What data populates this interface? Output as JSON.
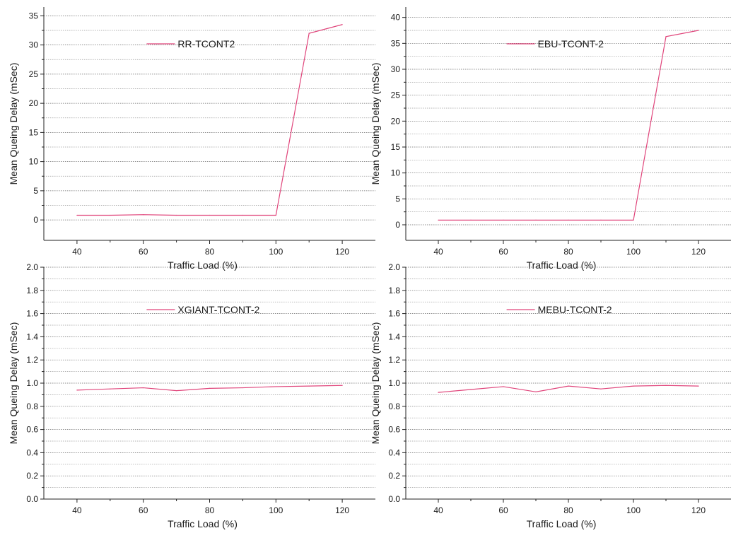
{
  "chart_data": [
    {
      "type": "line",
      "xlabel": "Traffic Load (%)",
      "ylabel": "Mean Queing Delay (mSec)",
      "xlim": [
        30,
        130
      ],
      "ylim": [
        -3.5,
        36.5
      ],
      "xticks": [
        40,
        60,
        80,
        100,
        120
      ],
      "yticks": [
        0,
        5,
        10,
        15,
        20,
        25,
        30,
        35
      ],
      "ytick_labels": [
        "0",
        "5",
        "10",
        "15",
        "20",
        "25",
        "30",
        "35"
      ],
      "grid": true,
      "legend_position": "top",
      "series": [
        {
          "name": "RR-TCONT2",
          "color": "#e0457b",
          "x": [
            40,
            50,
            60,
            70,
            80,
            90,
            100,
            110,
            120
          ],
          "y": [
            0.8,
            0.8,
            0.9,
            0.8,
            0.8,
            0.8,
            0.8,
            32.0,
            33.5
          ]
        }
      ]
    },
    {
      "type": "line",
      "xlabel": "Traffic Load (%)",
      "ylabel": "Mean Queing Delay (mSec)",
      "xlim": [
        30,
        130
      ],
      "ylim": [
        -3.0,
        42.0
      ],
      "xticks": [
        40,
        60,
        80,
        100,
        120
      ],
      "yticks": [
        0,
        5,
        10,
        15,
        20,
        25,
        30,
        35,
        40
      ],
      "ytick_labels": [
        "0",
        "5",
        "10",
        "15",
        "20",
        "25",
        "30",
        "35",
        "40"
      ],
      "grid": true,
      "legend_position": "top",
      "series": [
        {
          "name": "EBU-TCONT-2",
          "color": "#e0457b",
          "x": [
            40,
            50,
            60,
            70,
            80,
            90,
            100,
            110,
            120
          ],
          "y": [
            0.9,
            0.9,
            0.9,
            0.9,
            0.9,
            0.9,
            0.9,
            36.3,
            37.5
          ]
        }
      ]
    },
    {
      "type": "line",
      "xlabel": "Traffic Load (%)",
      "ylabel": "Mean Queing Delay (mSec)",
      "xlim": [
        30,
        130
      ],
      "ylim": [
        0.0,
        2.0
      ],
      "xticks": [
        40,
        60,
        80,
        100,
        120
      ],
      "yticks": [
        0.0,
        0.2,
        0.4,
        0.6,
        0.8,
        1.0,
        1.2,
        1.4,
        1.6,
        1.8,
        2.0
      ],
      "ytick_labels": [
        "0.0",
        "0.2",
        "0.4",
        "0.6",
        "0.8",
        "1.0",
        "1.2",
        "1.4",
        "1.6",
        "1.8",
        "2.0"
      ],
      "grid": true,
      "legend_position": "top",
      "series": [
        {
          "name": "XGIANT-TCONT-2",
          "color": "#e0457b",
          "x": [
            40,
            50,
            60,
            70,
            80,
            90,
            100,
            110,
            120
          ],
          "y": [
            0.94,
            0.95,
            0.96,
            0.935,
            0.955,
            0.96,
            0.97,
            0.975,
            0.98
          ]
        }
      ]
    },
    {
      "type": "line",
      "xlabel": "Traffic Load (%)",
      "ylabel": "Mean Queing Delay (mSec)",
      "xlim": [
        30,
        130
      ],
      "ylim": [
        0.0,
        2.0
      ],
      "xticks": [
        40,
        60,
        80,
        100,
        120
      ],
      "yticks": [
        0.0,
        0.2,
        0.4,
        0.6,
        0.8,
        1.0,
        1.2,
        1.4,
        1.6,
        1.8,
        2.0
      ],
      "ytick_labels": [
        "0.0",
        "0.2",
        "0.4",
        "0.6",
        "0.8",
        "1.0",
        "1.2",
        "1.4",
        "1.6",
        "1.8",
        "2.0"
      ],
      "grid": true,
      "legend_position": "top",
      "series": [
        {
          "name": "MEBU-TCONT-2",
          "color": "#e0457b",
          "x": [
            40,
            50,
            60,
            70,
            80,
            90,
            100,
            110,
            120
          ],
          "y": [
            0.92,
            0.945,
            0.97,
            0.925,
            0.975,
            0.95,
            0.975,
            0.98,
            0.975
          ]
        }
      ]
    }
  ]
}
